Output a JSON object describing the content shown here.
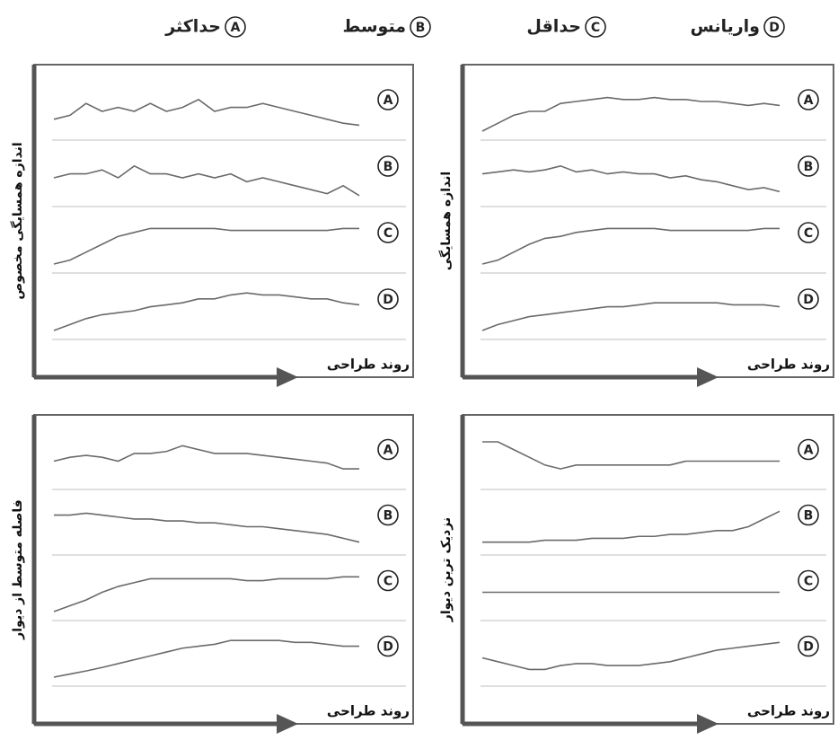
{
  "legend": [
    {
      "letter": "A",
      "label": "حداکثر"
    },
    {
      "letter": "B",
      "label": "متوسط"
    },
    {
      "letter": "C",
      "label": "حداقل"
    },
    {
      "letter": "D",
      "label": "واریانس"
    }
  ],
  "chart_data": [
    {
      "type": "line",
      "y_label": "اندازه همسایگی مخصوص",
      "x_label": "روند طراحی",
      "ylim": [
        0,
        10
      ],
      "color": "#6a6a6a",
      "series": [
        {
          "name": "A",
          "values": [
            3,
            4,
            7,
            5,
            6,
            5,
            7,
            5,
            6,
            8,
            5,
            6,
            6,
            7,
            6,
            5,
            4,
            3,
            2,
            1.5
          ]
        },
        {
          "name": "B",
          "values": [
            5,
            6,
            6,
            7,
            5,
            8,
            6,
            6,
            5,
            6,
            5,
            6,
            4,
            5,
            4,
            3,
            2,
            1,
            3,
            0.5
          ]
        },
        {
          "name": "C",
          "values": [
            0,
            1,
            3,
            5,
            7,
            8,
            9,
            9,
            9,
            9,
            9,
            8.5,
            8.5,
            8.5,
            8.5,
            8.5,
            8.5,
            8.5,
            9,
            9
          ]
        },
        {
          "name": "D",
          "values": [
            0,
            1.5,
            3,
            4,
            4.5,
            5,
            6,
            6.5,
            7,
            8,
            8,
            9,
            9.5,
            9,
            9,
            8.5,
            8,
            8,
            7,
            6.5
          ]
        }
      ]
    },
    {
      "type": "line",
      "y_label": "اندازه همسایگی",
      "x_label": "روند طراحی",
      "ylim": [
        0,
        10
      ],
      "color": "#6a6a6a",
      "series": [
        {
          "name": "A",
          "values": [
            0,
            2,
            4,
            5,
            5,
            7,
            7.5,
            8,
            8.5,
            8,
            8,
            8.5,
            8,
            8,
            7.5,
            7.5,
            7,
            6.5,
            7,
            6.5
          ]
        },
        {
          "name": "B",
          "values": [
            6,
            6.5,
            7,
            6.5,
            7,
            8,
            6.5,
            7,
            6,
            6.5,
            6,
            6,
            5,
            5.5,
            4.5,
            4,
            3,
            2,
            2.5,
            1.5
          ]
        },
        {
          "name": "C",
          "values": [
            0,
            1,
            3,
            5,
            6.5,
            7,
            8,
            8.5,
            9,
            9,
            9,
            9,
            8.5,
            8.5,
            8.5,
            8.5,
            8.5,
            8.5,
            9,
            9
          ]
        },
        {
          "name": "D",
          "values": [
            0,
            1.5,
            2.5,
            3.5,
            4,
            4.5,
            5,
            5.5,
            6,
            6,
            6.5,
            7,
            7,
            7,
            7,
            7,
            6.5,
            6.5,
            6.5,
            6
          ]
        }
      ]
    },
    {
      "type": "line",
      "y_label": "فاصله متوسط از دیوار",
      "x_label": "روند طراحی",
      "ylim": [
        0,
        10
      ],
      "color": "#6a6a6a",
      "series": [
        {
          "name": "A",
          "values": [
            5,
            6,
            6.5,
            6,
            5,
            7,
            7,
            7.5,
            9,
            8,
            7,
            7,
            7,
            6.5,
            6,
            5.5,
            5,
            4.5,
            3,
            3
          ]
        },
        {
          "name": "B",
          "values": [
            8,
            8,
            8.5,
            8,
            7.5,
            7,
            7,
            6.5,
            6.5,
            6,
            6,
            5.5,
            5,
            5,
            4.5,
            4,
            3.5,
            3,
            2,
            1
          ]
        },
        {
          "name": "C",
          "values": [
            0,
            1.5,
            3,
            5,
            6.5,
            7.5,
            8.5,
            8.5,
            8.5,
            8.5,
            8.5,
            8.5,
            8,
            8,
            8.5,
            8.5,
            8.5,
            8.5,
            9,
            9
          ]
        },
        {
          "name": "D",
          "values": [
            0,
            0.8,
            1.6,
            2.5,
            3.5,
            4.5,
            5.5,
            6.5,
            7.5,
            8,
            8.5,
            9.5,
            9.5,
            9.5,
            9.5,
            9,
            9,
            8.5,
            8,
            8
          ]
        }
      ]
    },
    {
      "type": "line",
      "y_label": "نزدیک ترین دیوار",
      "x_label": "روند طراحی",
      "ylim": [
        0,
        10
      ],
      "color": "#6a6a6a",
      "series": [
        {
          "name": "A",
          "values": [
            10,
            10,
            8,
            6,
            4,
            3,
            4,
            4,
            4,
            4,
            4,
            4,
            4,
            5,
            5,
            5,
            5,
            5,
            5,
            5
          ]
        },
        {
          "name": "B",
          "values": [
            1,
            1,
            1,
            1,
            1.5,
            1.5,
            1.5,
            2,
            2,
            2,
            2.5,
            2.5,
            3,
            3,
            3.5,
            4,
            4,
            5,
            7,
            9
          ]
        },
        {
          "name": "C",
          "values": [
            5,
            5,
            5,
            5,
            5,
            5,
            5,
            5,
            5,
            5,
            5,
            5,
            5,
            5,
            5,
            5,
            5,
            5,
            5,
            5
          ]
        },
        {
          "name": "D",
          "values": [
            5,
            4,
            3,
            2,
            2,
            3,
            3.5,
            3.5,
            3,
            3,
            3,
            3.5,
            4,
            5,
            6,
            7,
            7.5,
            8,
            8.5,
            9
          ]
        }
      ]
    }
  ]
}
